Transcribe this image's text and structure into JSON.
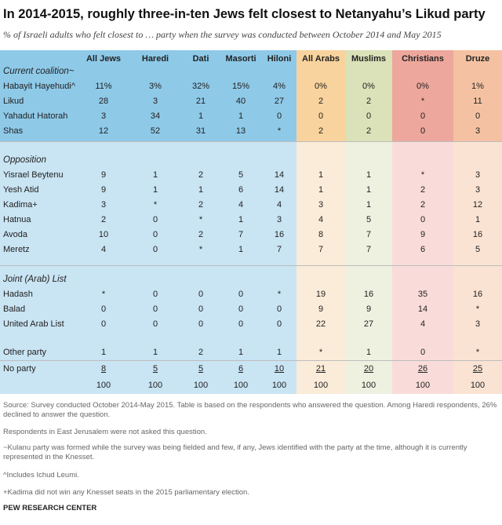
{
  "title": "In 2014-2015, roughly three-in-ten Jews felt closest to Netanyahu’s Likud party",
  "subtitle": "% of Israeli adults who felt closest to … party when the survey was conducted between October 2014 and May 2015",
  "colors": {
    "jews_col": "#c9e4f3",
    "jews_col_top": "#8ec9e8",
    "arabs_col": "#fbecd9",
    "arabs_col_top": "#f8d39d",
    "muslims_col": "#eef1e0",
    "muslims_col_top": "#dbe1b8",
    "christians_col": "#f9dcd9",
    "christians_col_top": "#eda79c",
    "druze_col": "#fbe3d3",
    "druze_col_top": "#f4c2a2"
  },
  "chart_data": {
    "type": "table",
    "columns": [
      "All Jews",
      "Haredi",
      "Dati",
      "Masorti",
      "Hiloni",
      "All Arabs",
      "Muslims",
      "Christians",
      "Druze"
    ],
    "sections": [
      {
        "name": "Current coalition~",
        "rows": [
          {
            "label": "Habayit Hayehudi^",
            "values": [
              "11%",
              "3%",
              "32%",
              "15%",
              "4%",
              "0%",
              "0%",
              "0%",
              "1%"
            ]
          },
          {
            "label": "Likud",
            "values": [
              "28",
              "3",
              "21",
              "40",
              "27",
              "2",
              "2",
              "*",
              "11"
            ]
          },
          {
            "label": "Yahadut Hatorah",
            "values": [
              "3",
              "34",
              "1",
              "1",
              "0",
              "0",
              "0",
              "0",
              "0"
            ]
          },
          {
            "label": "Shas",
            "values": [
              "12",
              "52",
              "31",
              "13",
              "*",
              "2",
              "2",
              "0",
              "3"
            ]
          }
        ]
      },
      {
        "name": "Opposition",
        "rows": [
          {
            "label": "Yisrael Beytenu",
            "values": [
              "9",
              "1",
              "2",
              "5",
              "14",
              "1",
              "1",
              "*",
              "3"
            ]
          },
          {
            "label": "Yesh Atid",
            "values": [
              "9",
              "1",
              "1",
              "6",
              "14",
              "1",
              "1",
              "2",
              "3"
            ]
          },
          {
            "label": "Kadima+",
            "values": [
              "3",
              "*",
              "2",
              "4",
              "4",
              "3",
              "1",
              "2",
              "12"
            ]
          },
          {
            "label": "Hatnua",
            "values": [
              "2",
              "0",
              "*",
              "1",
              "3",
              "4",
              "5",
              "0",
              "1"
            ]
          },
          {
            "label": "Avoda",
            "values": [
              "10",
              "0",
              "2",
              "7",
              "16",
              "8",
              "7",
              "9",
              "16"
            ]
          },
          {
            "label": "Meretz",
            "values": [
              "4",
              "0",
              "*",
              "1",
              "7",
              "7",
              "7",
              "6",
              "5"
            ]
          }
        ]
      },
      {
        "name": "Joint (Arab) List",
        "rows": [
          {
            "label": "Hadash",
            "values": [
              "*",
              "0",
              "0",
              "0",
              "*",
              "19",
              "16",
              "35",
              "16"
            ]
          },
          {
            "label": "Balad",
            "values": [
              "0",
              "0",
              "0",
              "0",
              "0",
              "9",
              "9",
              "14",
              "*"
            ]
          },
          {
            "label": "United Arab List",
            "values": [
              "0",
              "0",
              "0",
              "0",
              "0",
              "22",
              "27",
              "4",
              "3"
            ]
          }
        ]
      }
    ],
    "other_party": {
      "label": "Other party",
      "values": [
        "1",
        "1",
        "2",
        "1",
        "1",
        "*",
        "1",
        "0",
        "*"
      ]
    },
    "no_party": {
      "label": "No party",
      "values": [
        "8",
        "5",
        "5",
        "6",
        "10",
        "21",
        "20",
        "26",
        "25"
      ]
    },
    "totals": [
      "100",
      "100",
      "100",
      "100",
      "100",
      "100",
      "100",
      "100",
      "100"
    ]
  },
  "footnotes": [
    "Source: Survey conducted October 2014-May 2015. Table is based on the respondents who answered the question. Among Haredi respondents, 26% declined to answer the question.",
    "Respondents in East Jerusalem were not asked this question.",
    "~Kulanu party was formed while the survey was being fielded and few, if any, Jews identified with the party at the time, although it is currently represented in the Knesset.",
    "^Includes Ichud Leumi.",
    "+Kadima did not win any Knesset seats in the 2015 parliamentary election."
  ],
  "source_name": "PEW RESEARCH CENTER"
}
